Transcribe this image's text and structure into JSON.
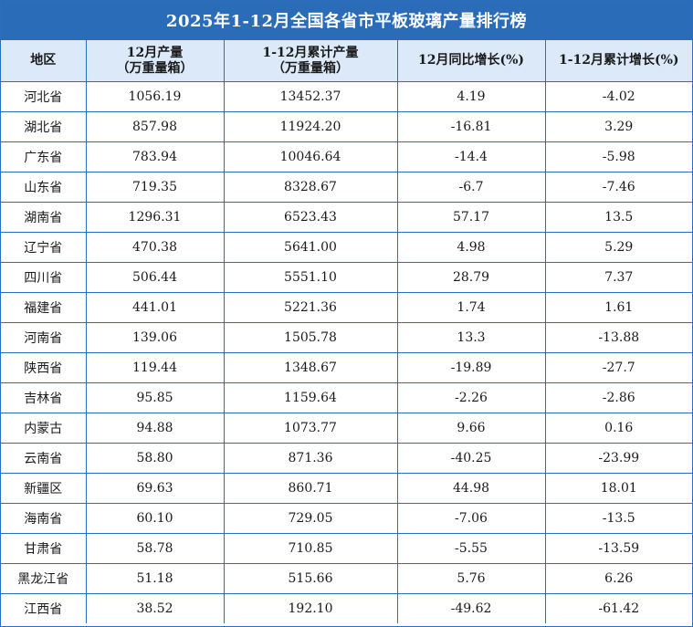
{
  "title": "2025年1-12月全国各省市平板玻璃产量排行榜",
  "headers": {
    "region": "地区",
    "dec_output_line1": "12月产量",
    "dec_output_line2": "（万重量箱）",
    "ytd_output_line1": "1-12月累计产量",
    "ytd_output_line2": "（万重量箱）",
    "dec_yoy": "12月同比增长(%)",
    "ytd_yoy": "1-12月累计增长(%)"
  },
  "rows": [
    {
      "region": "河北省",
      "dec_output": "1056.19",
      "ytd_output": "13452.37",
      "dec_yoy": "4.19",
      "ytd_yoy": "-4.02"
    },
    {
      "region": "湖北省",
      "dec_output": "857.98",
      "ytd_output": "11924.20",
      "dec_yoy": "-16.81",
      "ytd_yoy": "3.29"
    },
    {
      "region": "广东省",
      "dec_output": "783.94",
      "ytd_output": "10046.64",
      "dec_yoy": "-14.4",
      "ytd_yoy": "-5.98"
    },
    {
      "region": "山东省",
      "dec_output": "719.35",
      "ytd_output": "8328.67",
      "dec_yoy": "-6.7",
      "ytd_yoy": "-7.46"
    },
    {
      "region": "湖南省",
      "dec_output": "1296.31",
      "ytd_output": "6523.43",
      "dec_yoy": "57.17",
      "ytd_yoy": "13.5"
    },
    {
      "region": "辽宁省",
      "dec_output": "470.38",
      "ytd_output": "5641.00",
      "dec_yoy": "4.98",
      "ytd_yoy": "5.29"
    },
    {
      "region": "四川省",
      "dec_output": "506.44",
      "ytd_output": "5551.10",
      "dec_yoy": "28.79",
      "ytd_yoy": "7.37"
    },
    {
      "region": "福建省",
      "dec_output": "441.01",
      "ytd_output": "5221.36",
      "dec_yoy": "1.74",
      "ytd_yoy": "1.61"
    },
    {
      "region": "河南省",
      "dec_output": "139.06",
      "ytd_output": "1505.78",
      "dec_yoy": "13.3",
      "ytd_yoy": "-13.88"
    },
    {
      "region": "陕西省",
      "dec_output": "119.44",
      "ytd_output": "1348.67",
      "dec_yoy": "-19.89",
      "ytd_yoy": "-27.7"
    },
    {
      "region": "吉林省",
      "dec_output": "95.85",
      "ytd_output": "1159.64",
      "dec_yoy": "-2.26",
      "ytd_yoy": "-2.86"
    },
    {
      "region": "内蒙古",
      "dec_output": "94.88",
      "ytd_output": "1073.77",
      "dec_yoy": "9.66",
      "ytd_yoy": "0.16"
    },
    {
      "region": "云南省",
      "dec_output": "58.80",
      "ytd_output": "871.36",
      "dec_yoy": "-40.25",
      "ytd_yoy": "-23.99"
    },
    {
      "region": "新疆区",
      "dec_output": "69.63",
      "ytd_output": "860.71",
      "dec_yoy": "44.98",
      "ytd_yoy": "18.01"
    },
    {
      "region": "海南省",
      "dec_output": "60.10",
      "ytd_output": "729.05",
      "dec_yoy": "-7.06",
      "ytd_yoy": "-13.5"
    },
    {
      "region": "甘肃省",
      "dec_output": "58.78",
      "ytd_output": "710.85",
      "dec_yoy": "-5.55",
      "ytd_yoy": "-13.59"
    },
    {
      "region": "黑龙江省",
      "dec_output": "51.18",
      "ytd_output": "515.66",
      "dec_yoy": "5.76",
      "ytd_yoy": "6.26"
    },
    {
      "region": "江西省",
      "dec_output": "38.52",
      "ytd_output": "192.10",
      "dec_yoy": "-49.62",
      "ytd_yoy": "-61.42"
    }
  ],
  "colors": {
    "title_bg": "#2b6cb8",
    "header_bg": "#dbe9f8",
    "border": "#2a6fbf"
  }
}
